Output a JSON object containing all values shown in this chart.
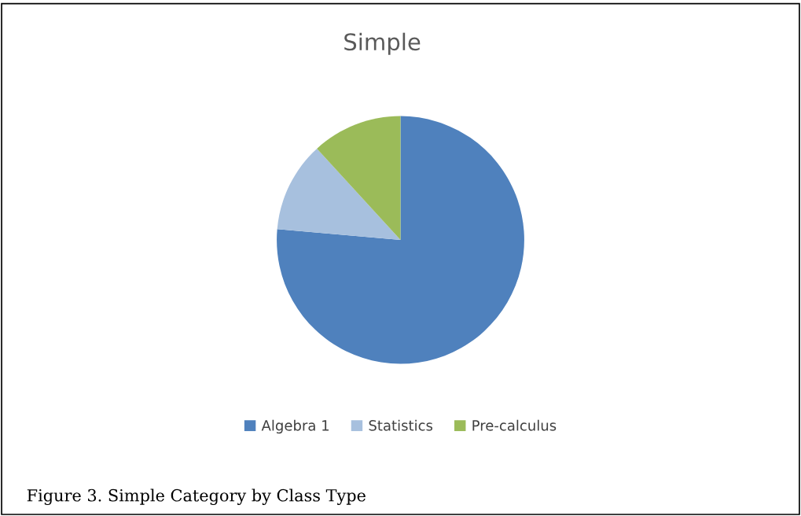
{
  "chart_data": {
    "type": "pie",
    "title": "Simple",
    "categories": [
      "Algebra 1",
      "Statistics",
      "Pre-calculus"
    ],
    "values": [
      76.4,
      11.8,
      11.8
    ],
    "colors": [
      "#4f81bd",
      "#a7c0de",
      "#9bbb59"
    ],
    "legend": "bottom",
    "annotations": [
      "Figure 3. Simple Category by Class Type"
    ]
  }
}
